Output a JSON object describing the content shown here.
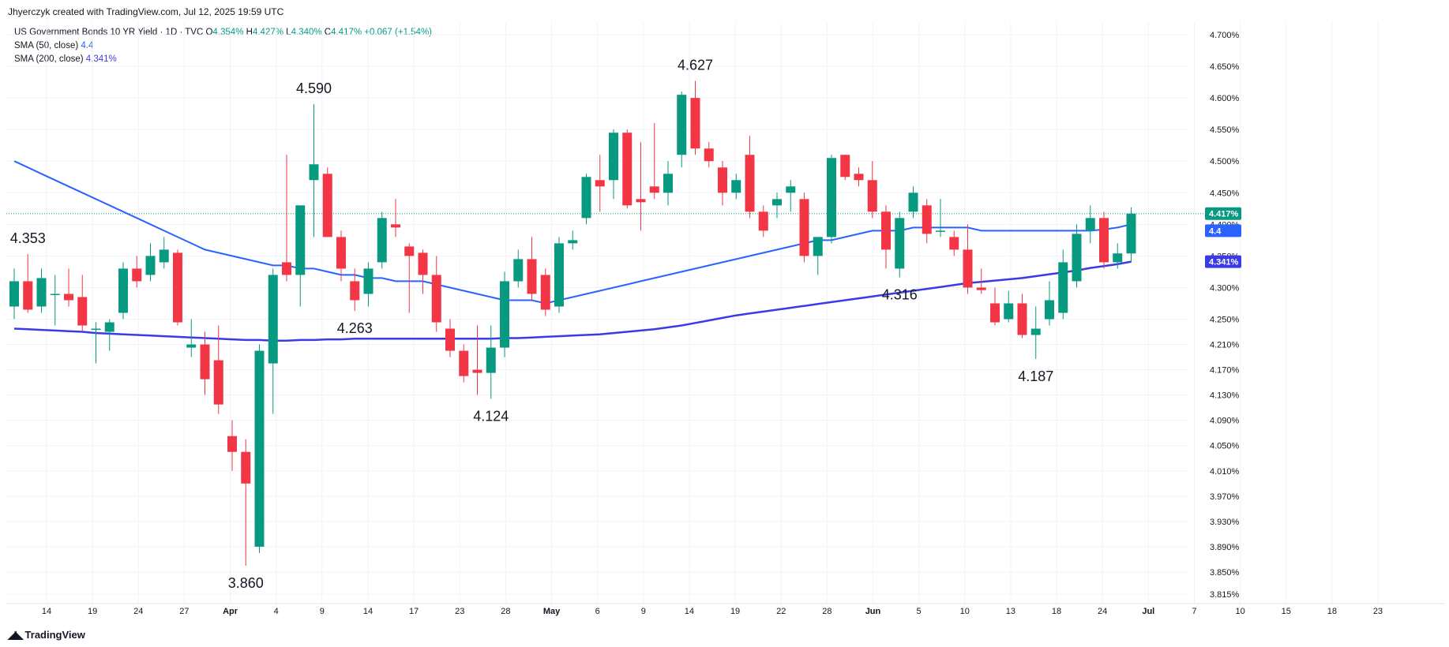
{
  "header": {
    "attribution": "Jhyerczyk created with TradingView.com, Jul 12, 2025 19:59 UTC"
  },
  "legend": {
    "symbol": "US Government Bonds 10 YR Yield · 1D · TVC",
    "o_label": "O",
    "o_value": "4.354%",
    "h_label": "H",
    "h_value": "4.427%",
    "l_label": "L",
    "l_value": "4.340%",
    "c_label": "C",
    "c_value": "4.417%",
    "change": "+0.067 (+1.54%)",
    "sma50_label": "SMA (50, close)",
    "sma50_value": "4.4",
    "sma200_label": "SMA (200, close)",
    "sma200_value": "4.341%"
  },
  "footer": {
    "brand": "TradingView",
    "logo_icon": "tradingview-logo-icon"
  },
  "colors": {
    "up": "#089981",
    "down": "#f23645",
    "sma50": "#2962ff",
    "sma200": "#3a3ae6",
    "grid": "#f0f3fa",
    "axis_text": "#131722",
    "last_price_line": "#089981"
  },
  "chart_data": {
    "type": "candlestick",
    "title": "US Government Bonds 10 YR Yield · 1D · TVC",
    "ylim": [
      3.8,
      4.72
    ],
    "y_ticks": [
      "4.700%",
      "4.650%",
      "4.600%",
      "4.550%",
      "4.500%",
      "4.450%",
      "4.400%",
      "4.350%",
      "4.300%",
      "4.250%",
      "4.210%",
      "4.170%",
      "4.130%",
      "4.090%",
      "4.050%",
      "4.010%",
      "3.970%",
      "3.930%",
      "3.890%",
      "3.850%",
      "3.815%"
    ],
    "x_ticks": [
      "14",
      "19",
      "24",
      "27",
      "Apr",
      "4",
      "9",
      "14",
      "17",
      "23",
      "28",
      "May",
      "6",
      "9",
      "14",
      "19",
      "22",
      "28",
      "Jun",
      "5",
      "10",
      "13",
      "18",
      "24",
      "Jul",
      "7",
      "10",
      "15",
      "18",
      "23"
    ],
    "candles": [
      {
        "o": 4.27,
        "h": 4.33,
        "l": 4.25,
        "c": 4.31
      },
      {
        "o": 4.31,
        "h": 4.353,
        "l": 4.26,
        "c": 4.265
      },
      {
        "o": 4.27,
        "h": 4.33,
        "l": 4.26,
        "c": 4.315
      },
      {
        "o": 4.29,
        "h": 4.32,
        "l": 4.24,
        "c": 4.29
      },
      {
        "o": 4.29,
        "h": 4.33,
        "l": 4.27,
        "c": 4.28
      },
      {
        "o": 4.285,
        "h": 4.32,
        "l": 4.23,
        "c": 4.24
      },
      {
        "o": 4.235,
        "h": 4.245,
        "l": 4.18,
        "c": 4.235
      },
      {
        "o": 4.23,
        "h": 4.25,
        "l": 4.2,
        "c": 4.245
      },
      {
        "o": 4.26,
        "h": 4.34,
        "l": 4.25,
        "c": 4.33
      },
      {
        "o": 4.33,
        "h": 4.35,
        "l": 4.3,
        "c": 4.31
      },
      {
        "o": 4.32,
        "h": 4.37,
        "l": 4.31,
        "c": 4.35
      },
      {
        "o": 4.34,
        "h": 4.38,
        "l": 4.33,
        "c": 4.36
      },
      {
        "o": 4.355,
        "h": 4.36,
        "l": 4.24,
        "c": 4.245
      },
      {
        "o": 4.205,
        "h": 4.25,
        "l": 4.19,
        "c": 4.21
      },
      {
        "o": 4.21,
        "h": 4.23,
        "l": 4.13,
        "c": 4.155
      },
      {
        "o": 4.185,
        "h": 4.24,
        "l": 4.1,
        "c": 4.115
      },
      {
        "o": 4.065,
        "h": 4.09,
        "l": 4.01,
        "c": 4.04
      },
      {
        "o": 4.04,
        "h": 4.06,
        "l": 3.86,
        "c": 3.99
      },
      {
        "o": 3.89,
        "h": 4.21,
        "l": 3.88,
        "c": 4.2
      },
      {
        "o": 4.18,
        "h": 4.33,
        "l": 4.1,
        "c": 4.32
      },
      {
        "o": 4.34,
        "h": 4.51,
        "l": 4.31,
        "c": 4.32
      },
      {
        "o": 4.32,
        "h": 4.43,
        "l": 4.27,
        "c": 4.43
      },
      {
        "o": 4.47,
        "h": 4.59,
        "l": 4.38,
        "c": 4.495
      },
      {
        "o": 4.48,
        "h": 4.49,
        "l": 4.38,
        "c": 4.38
      },
      {
        "o": 4.38,
        "h": 4.39,
        "l": 4.31,
        "c": 4.33
      },
      {
        "o": 4.31,
        "h": 4.33,
        "l": 4.263,
        "c": 4.28
      },
      {
        "o": 4.29,
        "h": 4.34,
        "l": 4.27,
        "c": 4.33
      },
      {
        "o": 4.34,
        "h": 4.42,
        "l": 4.33,
        "c": 4.41
      },
      {
        "o": 4.4,
        "h": 4.44,
        "l": 4.38,
        "c": 4.395
      },
      {
        "o": 4.365,
        "h": 4.37,
        "l": 4.26,
        "c": 4.35
      },
      {
        "o": 4.355,
        "h": 4.36,
        "l": 4.29,
        "c": 4.32
      },
      {
        "o": 4.32,
        "h": 4.35,
        "l": 4.23,
        "c": 4.245
      },
      {
        "o": 4.235,
        "h": 4.25,
        "l": 4.19,
        "c": 4.2
      },
      {
        "o": 4.2,
        "h": 4.21,
        "l": 4.15,
        "c": 4.16
      },
      {
        "o": 4.17,
        "h": 4.24,
        "l": 4.13,
        "c": 4.165
      },
      {
        "o": 4.165,
        "h": 4.24,
        "l": 4.124,
        "c": 4.205
      },
      {
        "o": 4.205,
        "h": 4.325,
        "l": 4.19,
        "c": 4.31
      },
      {
        "o": 4.31,
        "h": 4.36,
        "l": 4.3,
        "c": 4.345
      },
      {
        "o": 4.345,
        "h": 4.38,
        "l": 4.28,
        "c": 4.29
      },
      {
        "o": 4.32,
        "h": 4.33,
        "l": 4.255,
        "c": 4.265
      },
      {
        "o": 4.27,
        "h": 4.38,
        "l": 4.26,
        "c": 4.37
      },
      {
        "o": 4.37,
        "h": 4.39,
        "l": 4.36,
        "c": 4.375
      },
      {
        "o": 4.41,
        "h": 4.48,
        "l": 4.4,
        "c": 4.475
      },
      {
        "o": 4.47,
        "h": 4.51,
        "l": 4.42,
        "c": 4.46
      },
      {
        "o": 4.47,
        "h": 4.55,
        "l": 4.44,
        "c": 4.545
      },
      {
        "o": 4.545,
        "h": 4.55,
        "l": 4.425,
        "c": 4.43
      },
      {
        "o": 4.44,
        "h": 4.53,
        "l": 4.39,
        "c": 4.435
      },
      {
        "o": 4.46,
        "h": 4.56,
        "l": 4.44,
        "c": 4.45
      },
      {
        "o": 4.45,
        "h": 4.5,
        "l": 4.43,
        "c": 4.48
      },
      {
        "o": 4.51,
        "h": 4.61,
        "l": 4.49,
        "c": 4.605
      },
      {
        "o": 4.6,
        "h": 4.627,
        "l": 4.51,
        "c": 4.52
      },
      {
        "o": 4.52,
        "h": 4.53,
        "l": 4.49,
        "c": 4.5
      },
      {
        "o": 4.49,
        "h": 4.5,
        "l": 4.43,
        "c": 4.45
      },
      {
        "o": 4.45,
        "h": 4.48,
        "l": 4.44,
        "c": 4.47
      },
      {
        "o": 4.51,
        "h": 4.54,
        "l": 4.41,
        "c": 4.42
      },
      {
        "o": 4.42,
        "h": 4.43,
        "l": 4.38,
        "c": 4.39
      },
      {
        "o": 4.43,
        "h": 4.45,
        "l": 4.41,
        "c": 4.44
      },
      {
        "o": 4.45,
        "h": 4.47,
        "l": 4.42,
        "c": 4.46
      },
      {
        "o": 4.44,
        "h": 4.45,
        "l": 4.34,
        "c": 4.35
      },
      {
        "o": 4.35,
        "h": 4.38,
        "l": 4.32,
        "c": 4.38
      },
      {
        "o": 4.38,
        "h": 4.51,
        "l": 4.37,
        "c": 4.505
      },
      {
        "o": 4.51,
        "h": 4.51,
        "l": 4.47,
        "c": 4.475
      },
      {
        "o": 4.48,
        "h": 4.49,
        "l": 4.46,
        "c": 4.47
      },
      {
        "o": 4.47,
        "h": 4.5,
        "l": 4.41,
        "c": 4.42
      },
      {
        "o": 4.42,
        "h": 4.43,
        "l": 4.33,
        "c": 4.36
      },
      {
        "o": 4.33,
        "h": 4.42,
        "l": 4.316,
        "c": 4.41
      },
      {
        "o": 4.42,
        "h": 4.46,
        "l": 4.41,
        "c": 4.45
      },
      {
        "o": 4.43,
        "h": 4.44,
        "l": 4.37,
        "c": 4.385
      },
      {
        "o": 4.39,
        "h": 4.44,
        "l": 4.38,
        "c": 4.39
      },
      {
        "o": 4.38,
        "h": 4.39,
        "l": 4.35,
        "c": 4.36
      },
      {
        "o": 4.36,
        "h": 4.4,
        "l": 4.29,
        "c": 4.3
      },
      {
        "o": 4.3,
        "h": 4.33,
        "l": 4.29,
        "c": 4.296
      },
      {
        "o": 4.275,
        "h": 4.3,
        "l": 4.24,
        "c": 4.245
      },
      {
        "o": 4.25,
        "h": 4.295,
        "l": 4.245,
        "c": 4.275
      },
      {
        "o": 4.275,
        "h": 4.29,
        "l": 4.22,
        "c": 4.225
      },
      {
        "o": 4.225,
        "h": 4.27,
        "l": 4.187,
        "c": 4.235
      },
      {
        "o": 4.25,
        "h": 4.31,
        "l": 4.24,
        "c": 4.28
      },
      {
        "o": 4.26,
        "h": 4.36,
        "l": 4.25,
        "c": 4.34
      },
      {
        "o": 4.31,
        "h": 4.4,
        "l": 4.3,
        "c": 4.385
      },
      {
        "o": 4.39,
        "h": 4.43,
        "l": 4.37,
        "c": 4.41
      },
      {
        "o": 4.41,
        "h": 4.42,
        "l": 4.33,
        "c": 4.34
      },
      {
        "o": 4.34,
        "h": 4.37,
        "l": 4.33,
        "c": 4.354
      },
      {
        "o": 4.354,
        "h": 4.427,
        "l": 4.34,
        "c": 4.417
      }
    ],
    "sma50": [
      4.5,
      4.49,
      4.48,
      4.47,
      4.46,
      4.45,
      4.44,
      4.43,
      4.42,
      4.41,
      4.4,
      4.39,
      4.38,
      4.37,
      4.36,
      4.355,
      4.35,
      4.345,
      4.34,
      4.335,
      4.335,
      4.33,
      4.33,
      4.325,
      4.32,
      4.32,
      4.315,
      4.315,
      4.31,
      4.31,
      4.31,
      4.305,
      4.3,
      4.295,
      4.29,
      4.285,
      4.28,
      4.28,
      4.28,
      4.275,
      4.28,
      4.285,
      4.29,
      4.295,
      4.3,
      4.305,
      4.31,
      4.315,
      4.32,
      4.325,
      4.33,
      4.335,
      4.34,
      4.345,
      4.35,
      4.355,
      4.36,
      4.365,
      4.37,
      4.375,
      4.375,
      4.38,
      4.385,
      4.39,
      4.39,
      4.39,
      4.395,
      4.395,
      4.395,
      4.395,
      4.395,
      4.39,
      4.39,
      4.39,
      4.39,
      4.39,
      4.39,
      4.39,
      4.39,
      4.39,
      4.392,
      4.395,
      4.4
    ],
    "sma200": [
      4.235,
      4.234,
      4.233,
      4.232,
      4.231,
      4.23,
      4.228,
      4.227,
      4.226,
      4.225,
      4.224,
      4.223,
      4.222,
      4.221,
      4.22,
      4.219,
      4.218,
      4.217,
      4.217,
      4.216,
      4.216,
      4.217,
      4.217,
      4.218,
      4.218,
      4.219,
      4.219,
      4.219,
      4.219,
      4.219,
      4.219,
      4.219,
      4.219,
      4.219,
      4.219,
      4.219,
      4.22,
      4.22,
      4.221,
      4.222,
      4.223,
      4.224,
      4.225,
      4.226,
      4.228,
      4.23,
      4.232,
      4.234,
      4.237,
      4.24,
      4.244,
      4.248,
      4.252,
      4.256,
      4.259,
      4.262,
      4.265,
      4.268,
      4.271,
      4.274,
      4.277,
      4.28,
      4.283,
      4.286,
      4.289,
      4.292,
      4.295,
      4.298,
      4.301,
      4.304,
      4.307,
      4.309,
      4.311,
      4.313,
      4.315,
      4.318,
      4.321,
      4.324,
      4.327,
      4.331,
      4.334,
      4.337,
      4.341
    ],
    "annotations": [
      {
        "text": "4.353",
        "index": 1,
        "value": 4.353,
        "pos": "above"
      },
      {
        "text": "4.590",
        "index": 22,
        "value": 4.59,
        "pos": "above"
      },
      {
        "text": "3.860",
        "index": 17,
        "value": 3.86,
        "pos": "below"
      },
      {
        "text": "4.263",
        "index": 25,
        "value": 4.263,
        "pos": "below"
      },
      {
        "text": "4.124",
        "index": 35,
        "value": 4.124,
        "pos": "below"
      },
      {
        "text": "4.627",
        "index": 50,
        "value": 4.627,
        "pos": "above"
      },
      {
        "text": "4.316",
        "index": 65,
        "value": 4.316,
        "pos": "below"
      },
      {
        "text": "4.187",
        "index": 75,
        "value": 4.187,
        "pos": "below"
      }
    ],
    "price_labels": [
      {
        "text": "4.417%",
        "value": 4.417,
        "color": "#089981"
      },
      {
        "text": "4.4",
        "value": 4.39,
        "color": "#2962ff"
      },
      {
        "text": "4.341%",
        "value": 4.341,
        "color": "#3a3ae6"
      }
    ]
  }
}
